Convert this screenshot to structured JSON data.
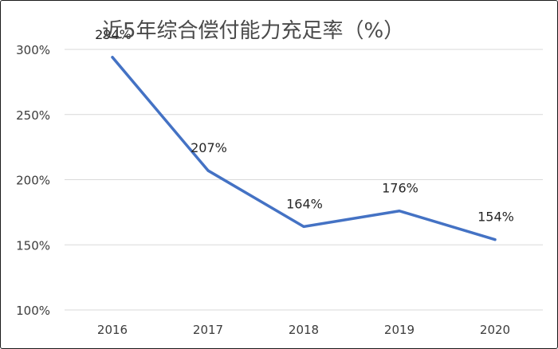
{
  "chart_data": {
    "type": "line",
    "title": "近5年综合偿付能力充足率（%）",
    "xlabel": "",
    "ylabel": "",
    "categories": [
      "2016",
      "2017",
      "2018",
      "2019",
      "2020"
    ],
    "series": [
      {
        "values": [
          294,
          207,
          164,
          176,
          154
        ],
        "labels": [
          "294%",
          "207%",
          "164%",
          "176%",
          "154%"
        ],
        "color": "#4472c4"
      }
    ],
    "ylim": [
      100,
      300
    ],
    "yticks": [
      100,
      150,
      200,
      250,
      300
    ],
    "ytick_labels": [
      "100%",
      "150%",
      "200%",
      "250%",
      "300%"
    ],
    "grid": true,
    "legend": "none"
  }
}
